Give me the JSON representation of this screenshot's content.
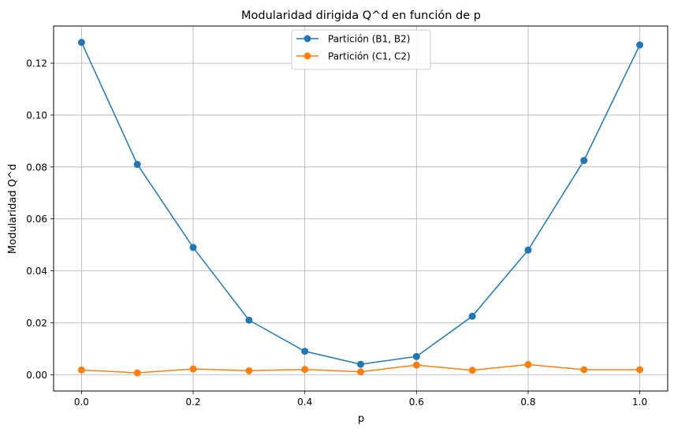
{
  "chart_data": {
    "type": "line",
    "title": "Modularidad dirigida Q^d en función de p",
    "xlabel": "p",
    "ylabel": "Modularidad Q^d",
    "x": [
      0.0,
      0.1,
      0.2,
      0.3,
      0.4,
      0.5,
      0.6,
      0.7,
      0.8,
      0.9,
      1.0
    ],
    "xlim": [
      -0.05,
      1.05
    ],
    "ylim": [
      -0.0063,
      0.1343
    ],
    "xticks": [
      0.0,
      0.2,
      0.4,
      0.6,
      0.8,
      1.0
    ],
    "xtick_labels": [
      "0.0",
      "0.2",
      "0.4",
      "0.6",
      "0.8",
      "1.0"
    ],
    "yticks": [
      0.0,
      0.02,
      0.04,
      0.06,
      0.08,
      0.1,
      0.12
    ],
    "ytick_labels": [
      "0.00",
      "0.02",
      "0.04",
      "0.06",
      "0.08",
      "0.10",
      "0.12"
    ],
    "grid": true,
    "legend_position": "top-center",
    "series": [
      {
        "name": "Partición (B1, B2)",
        "color": "#1f77b4",
        "marker": "circle",
        "values": [
          0.128,
          0.081,
          0.049,
          0.021,
          0.009,
          0.004,
          0.007,
          0.0225,
          0.048,
          0.0825,
          0.127
        ]
      },
      {
        "name": "Partición (C1, C2)",
        "color": "#ff7f0e",
        "marker": "circle",
        "values": [
          0.0018,
          0.0007,
          0.0022,
          0.0015,
          0.002,
          0.0011,
          0.0037,
          0.0017,
          0.0039,
          0.0019,
          0.0019
        ]
      }
    ]
  }
}
